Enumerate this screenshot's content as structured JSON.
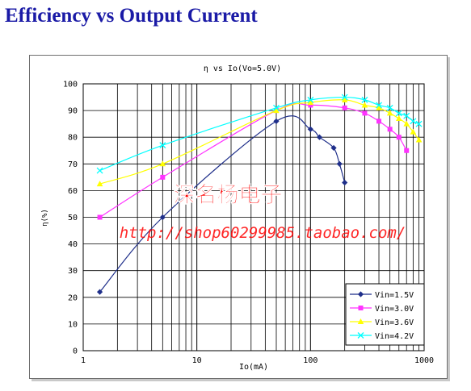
{
  "heading": "Efficiency vs Output Current",
  "chart_data": {
    "type": "line",
    "title": "η vs Io(Vo=5.0V)",
    "xlabel": "Io(mA)",
    "ylabel": "η(%)",
    "x_scale": "log",
    "xlim": [
      1,
      1000
    ],
    "ylim": [
      0,
      100
    ],
    "x_ticks": [
      "1",
      "10",
      "100",
      "1000"
    ],
    "y_ticks": [
      "0",
      "10",
      "20",
      "30",
      "40",
      "50",
      "60",
      "70",
      "80",
      "90",
      "100"
    ],
    "grid": true,
    "legend_position": "bottom-right",
    "series": [
      {
        "name": "Vin=1.5V",
        "color": "#1f2f8a",
        "marker": "diamond",
        "x": [
          1.4,
          5,
          50,
          100,
          120,
          160,
          180,
          200
        ],
        "y": [
          22,
          50,
          86,
          83,
          80,
          76,
          70,
          63
        ]
      },
      {
        "name": "Vin=3.0V",
        "color": "#ff33ff",
        "marker": "square",
        "x": [
          1.4,
          5,
          50,
          100,
          200,
          300,
          400,
          500,
          600,
          700
        ],
        "y": [
          50,
          65,
          90,
          92,
          91,
          89,
          86,
          83,
          80,
          75
        ]
      },
      {
        "name": "Vin=3.6V",
        "color": "#ffff00",
        "marker": "triangle",
        "x": [
          1.4,
          5,
          50,
          100,
          200,
          300,
          400,
          500,
          600,
          700,
          800,
          900
        ],
        "y": [
          62.5,
          70,
          90,
          93,
          94,
          92,
          91,
          89,
          87,
          85,
          82,
          79
        ]
      },
      {
        "name": "Vin=4.2V",
        "color": "#00ffff",
        "marker": "x",
        "x": [
          1.4,
          5,
          50,
          100,
          200,
          300,
          400,
          500,
          600,
          700,
          800,
          900
        ],
        "y": [
          67.5,
          77,
          91,
          94,
          95,
          94,
          92,
          91,
          89,
          88,
          86,
          85
        ]
      }
    ]
  },
  "watermark": {
    "name": "深名杨电子",
    "url": "http://shop60299985.taobao.com/",
    "color": "#ff0000"
  }
}
